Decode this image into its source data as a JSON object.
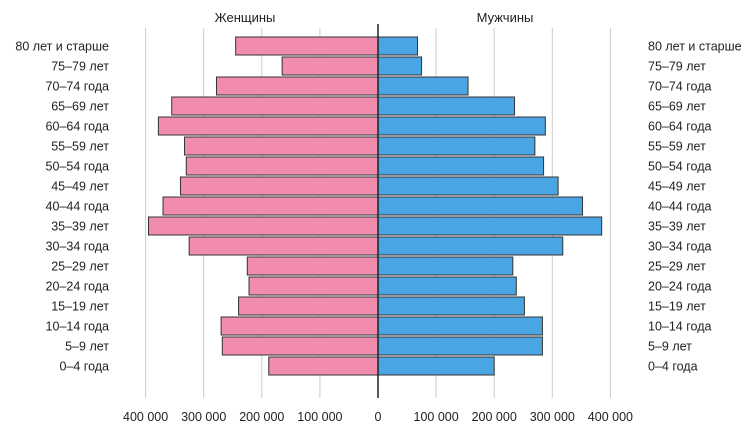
{
  "chart_data": {
    "type": "bar",
    "orientation": "horizontal",
    "layout": "population-pyramid",
    "categories": [
      "80 лет и старше",
      "75–79 лет",
      "70–74 года",
      "65–69 лет",
      "60–64 года",
      "55–59 лет",
      "50–54 года",
      "45–49 лет",
      "40–44 года",
      "35–39 лет",
      "30–34 года",
      "25–29 лет",
      "20–24 года",
      "15–19 лет",
      "10–14 года",
      "5–9 лет",
      "0–4 года"
    ],
    "series": [
      {
        "name": "Женщины",
        "color": "#f28cac",
        "values": [
          245000,
          165000,
          278000,
          355000,
          378000,
          333000,
          330000,
          340000,
          370000,
          395000,
          325000,
          225000,
          222000,
          240000,
          270000,
          268000,
          188000
        ]
      },
      {
        "name": "Мужчины",
        "color": "#4aa6e2",
        "values": [
          68000,
          75000,
          155000,
          235000,
          288000,
          270000,
          285000,
          310000,
          352000,
          385000,
          318000,
          232000,
          238000,
          252000,
          283000,
          283000,
          200000
        ]
      }
    ],
    "xlim": [
      -400000,
      400000
    ],
    "x_ticks": [
      -400000,
      -300000,
      -200000,
      -100000,
      0,
      100000,
      200000,
      300000,
      400000
    ],
    "x_tick_labels": [
      "400 000",
      "300 000",
      "200 000",
      "100 000",
      "0",
      "100 000",
      "200 000",
      "300 000",
      "400 000"
    ],
    "grid": true,
    "bar_edge_color": "#333333",
    "axis_color": "#222222",
    "grid_color": "#cccccc"
  }
}
